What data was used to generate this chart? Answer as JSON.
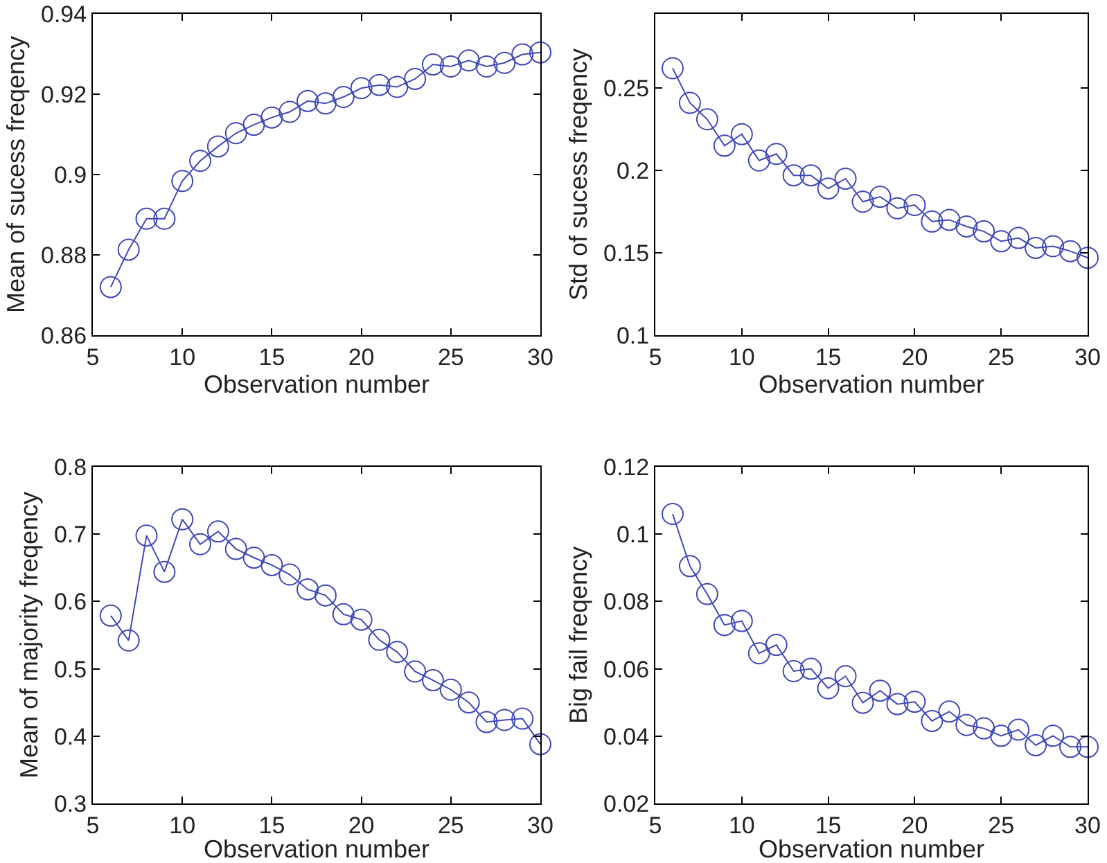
{
  "chart_data": [
    {
      "type": "line",
      "xlabel": "Observation number",
      "ylabel": "Mean of sucess freqency",
      "x": [
        6,
        7,
        8,
        9,
        10,
        11,
        12,
        13,
        14,
        15,
        16,
        17,
        18,
        19,
        20,
        21,
        22,
        23,
        24,
        25,
        26,
        27,
        28,
        29,
        30
      ],
      "xlim": [
        5,
        30
      ],
      "xticks": [
        5,
        10,
        15,
        20,
        25,
        30
      ],
      "ylim": [
        0.86,
        0.94
      ],
      "yticks": [
        0.86,
        0.88,
        0.9,
        0.92,
        0.94
      ],
      "marker": "circle",
      "series": [
        {
          "color": "#3f48b8",
          "values": [
            0.872,
            0.8813,
            0.889,
            0.889,
            0.8984,
            0.9034,
            0.907,
            0.9103,
            0.9124,
            0.9142,
            0.9156,
            0.9183,
            0.9177,
            0.9193,
            0.9215,
            0.9223,
            0.9218,
            0.9238,
            0.9274,
            0.9269,
            0.9284,
            0.9269,
            0.9278,
            0.9299,
            0.9304
          ]
        }
      ]
    },
    {
      "type": "line",
      "xlabel": "Observation number",
      "ylabel": "Std of sucess freqency",
      "x": [
        6,
        7,
        8,
        9,
        10,
        11,
        12,
        13,
        14,
        15,
        16,
        17,
        18,
        19,
        20,
        21,
        22,
        23,
        24,
        25,
        26,
        27,
        28,
        29,
        30
      ],
      "xlim": [
        5,
        30
      ],
      "xticks": [
        5,
        10,
        15,
        20,
        25,
        30
      ],
      "ylim": [
        0.1,
        0.295
      ],
      "yticks": [
        0.1,
        0.15,
        0.2,
        0.25
      ],
      "marker": "circle",
      "series": [
        {
          "color": "#3f48b8",
          "values": [
            0.262,
            0.241,
            0.231,
            0.215,
            0.222,
            0.206,
            0.21,
            0.197,
            0.197,
            0.189,
            0.195,
            0.181,
            0.184,
            0.177,
            0.179,
            0.169,
            0.17,
            0.166,
            0.163,
            0.157,
            0.159,
            0.153,
            0.154,
            0.151,
            0.147
          ]
        }
      ]
    },
    {
      "type": "line",
      "xlabel": "Observation number",
      "ylabel": "Mean of majority freqency",
      "x": [
        6,
        7,
        8,
        9,
        10,
        11,
        12,
        13,
        14,
        15,
        16,
        17,
        18,
        19,
        20,
        21,
        22,
        23,
        24,
        25,
        26,
        27,
        28,
        29,
        30
      ],
      "xlim": [
        5,
        30
      ],
      "xticks": [
        5,
        10,
        15,
        20,
        25,
        30
      ],
      "ylim": [
        0.3,
        0.8
      ],
      "yticks": [
        0.3,
        0.4,
        0.5,
        0.6,
        0.7,
        0.8
      ],
      "marker": "circle",
      "series": [
        {
          "color": "#3f48b8",
          "values": [
            0.579,
            0.542,
            0.698,
            0.644,
            0.722,
            0.685,
            0.704,
            0.678,
            0.665,
            0.654,
            0.64,
            0.618,
            0.609,
            0.581,
            0.573,
            0.543,
            0.525,
            0.496,
            0.483,
            0.469,
            0.45,
            0.421,
            0.424,
            0.426,
            0.388
          ]
        }
      ]
    },
    {
      "type": "line",
      "xlabel": "Observation number",
      "ylabel": "Big fail freqency",
      "x": [
        6,
        7,
        8,
        9,
        10,
        11,
        12,
        13,
        14,
        15,
        16,
        17,
        18,
        19,
        20,
        21,
        22,
        23,
        24,
        25,
        26,
        27,
        28,
        29,
        30
      ],
      "xlim": [
        5,
        30
      ],
      "xticks": [
        5,
        10,
        15,
        20,
        25,
        30
      ],
      "ylim": [
        0.02,
        0.12
      ],
      "yticks": [
        0.02,
        0.04,
        0.06,
        0.08,
        0.1,
        0.12
      ],
      "marker": "circle",
      "series": [
        {
          "color": "#3f48b8",
          "values": [
            0.106,
            0.0905,
            0.0822,
            0.073,
            0.0742,
            0.0646,
            0.0671,
            0.0593,
            0.06,
            0.0542,
            0.0578,
            0.0499,
            0.0535,
            0.0495,
            0.0502,
            0.0445,
            0.0473,
            0.0433,
            0.0423,
            0.0401,
            0.0419,
            0.0373,
            0.0401,
            0.0368,
            0.0368
          ]
        }
      ]
    }
  ]
}
